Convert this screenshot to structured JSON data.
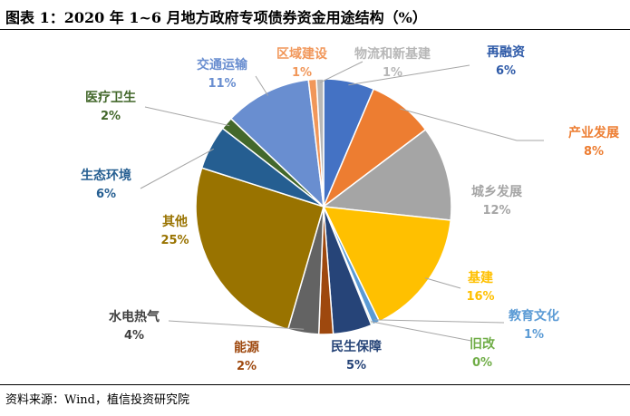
{
  "title": "图表 1：2020 年 1~6 月地方政府专项债券资金用途结构（%）",
  "source": "资料来源：Wind，植信投资研究院",
  "colors": {
    "label_default": "#404040",
    "leader": "#A6A6A6"
  },
  "chart_data": {
    "type": "pie",
    "title": "图表 1：2020 年 1~6 月地方政府专项债券资金用途结构（%）",
    "start_at": "12 o'clock",
    "direction": "clockwise",
    "slices": [
      {
        "name": "再融资",
        "value_label": "6%",
        "value": 6.4,
        "color": "#4472C4",
        "label_color": "#2E5AA8"
      },
      {
        "name": "产业发展",
        "value_label": "8%",
        "value": 8.3,
        "color": "#ED7D31",
        "label_color": "#ED7D31"
      },
      {
        "name": "城乡发展",
        "value_label": "12%",
        "value": 12.0,
        "color": "#A5A5A5",
        "label_color": "#A5A5A5"
      },
      {
        "name": "基建",
        "value_label": "16%",
        "value": 16.1,
        "color": "#FFC000",
        "label_color": "#FFC000"
      },
      {
        "name": "教育文化",
        "value_label": "1%",
        "value": 0.9,
        "color": "#5B9BD5",
        "label_color": "#5B9BD5"
      },
      {
        "name": "旧改",
        "value_label": "0%",
        "value": 0.2,
        "color": "#70AD47",
        "label_color": "#70AD47"
      },
      {
        "name": "民生保障",
        "value_label": "5%",
        "value": 4.9,
        "color": "#264478",
        "label_color": "#264478"
      },
      {
        "name": "能源",
        "value_label": "2%",
        "value": 1.8,
        "color": "#9E480E",
        "label_color": "#9E480E"
      },
      {
        "name": "水电热气",
        "value_label": "4%",
        "value": 3.9,
        "color": "#636363",
        "label_color": "#404040"
      },
      {
        "name": "其他",
        "value_label": "25%",
        "value": 25.4,
        "color": "#997300",
        "label_color": "#997300"
      },
      {
        "name": "生态环境",
        "value_label": "6%",
        "value": 5.6,
        "color": "#255E91",
        "label_color": "#255E91"
      },
      {
        "name": "医疗卫生",
        "value_label": "2%",
        "value": 1.6,
        "color": "#43682B",
        "label_color": "#43682B"
      },
      {
        "name": "交通运输",
        "value_label": "11%",
        "value": 11.0,
        "color": "#698ED0",
        "label_color": "#698ED0"
      },
      {
        "name": "区域建设",
        "value_label": "1%",
        "value": 1.0,
        "color": "#F1975A",
        "label_color": "#F1975A"
      },
      {
        "name": "物流和新基建",
        "value_label": "1%",
        "value": 0.9,
        "color": "#B7B7B7",
        "label_color": "#B7B7B7"
      }
    ]
  }
}
